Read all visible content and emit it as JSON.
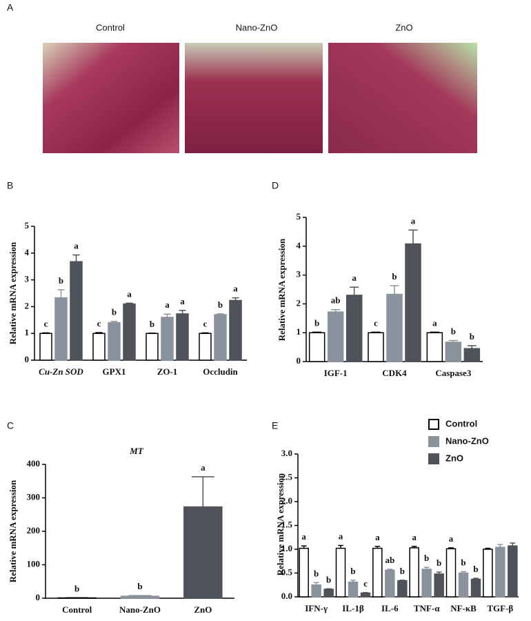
{
  "panel_a": {
    "panel": "A",
    "titles": [
      "Control",
      "Nano-ZnO",
      "ZnO"
    ]
  },
  "chart_data": [
    {
      "type": "bar",
      "panel": "B",
      "y_label": "Relative mRNA expression",
      "categories": [
        "Cu-Zn SOD",
        "GPX1",
        "ZO-1",
        "Occludin"
      ],
      "series": [
        {
          "name": "Control",
          "color": "#ffffff",
          "values": [
            1,
            1,
            1,
            1
          ],
          "errors": [
            0.02,
            0.03,
            0.01,
            0.02
          ],
          "letters": [
            "c",
            "c",
            "b",
            "c"
          ]
        },
        {
          "name": "Nano-ZnO",
          "color": "#8a939d",
          "values": [
            2.33,
            1.4,
            1.6,
            1.7
          ],
          "errors": [
            0.3,
            0.05,
            0.12,
            0.03
          ],
          "letters": [
            "b",
            "b",
            "a",
            "b"
          ]
        },
        {
          "name": "ZnO",
          "color": "#4d5358",
          "values": [
            3.68,
            2.1,
            1.73,
            2.23
          ],
          "errors": [
            0.25,
            0.03,
            0.13,
            0.1
          ],
          "letters": [
            "a",
            "a",
            "a",
            "a"
          ]
        }
      ],
      "ylim": [
        0,
        5
      ],
      "yticks": [
        0,
        1,
        2,
        3,
        4,
        5
      ]
    },
    {
      "type": "bar",
      "panel": "C",
      "title": "MT",
      "y_label": "Relative mRNA expression",
      "categories": [
        "Control",
        "Nano-ZnO",
        "ZnO"
      ],
      "values": [
        1,
        6,
        273
      ],
      "errors": [
        0.5,
        2,
        90
      ],
      "letters": [
        "b",
        "b",
        "a"
      ],
      "colors": [
        "#ffffff",
        "#8a939d",
        "#4d5358"
      ],
      "ylim": [
        0,
        400
      ],
      "yticks": [
        0,
        100,
        200,
        300,
        400
      ]
    },
    {
      "type": "bar",
      "panel": "D",
      "y_label": "Relative mRNA expression",
      "categories": [
        "IGF-1",
        "CDK4",
        "Caspase3"
      ],
      "series": [
        {
          "name": "Control",
          "color": "#ffffff",
          "values": [
            1,
            1,
            1
          ],
          "errors": [
            0.02,
            0.02,
            0.02
          ],
          "letters": [
            "b",
            "c",
            "a"
          ]
        },
        {
          "name": "Nano-ZnO",
          "color": "#8a939d",
          "values": [
            1.72,
            2.33,
            0.67
          ],
          "errors": [
            0.08,
            0.3,
            0.06
          ],
          "letters": [
            "ab",
            "b",
            "b"
          ]
        },
        {
          "name": "ZnO",
          "color": "#4d5358",
          "values": [
            2.3,
            4.08,
            0.45
          ],
          "errors": [
            0.28,
            0.48,
            0.1
          ],
          "letters": [
            "a",
            "a",
            "b"
          ]
        }
      ],
      "ylim": [
        0,
        5
      ],
      "yticks": [
        0,
        1,
        2,
        3,
        4,
        5
      ]
    },
    {
      "type": "bar",
      "panel": "E",
      "y_label": "Relative mRNA expression",
      "legend": true,
      "categories": [
        "IFN-γ",
        "IL-1β",
        "IL-6",
        "TNF-α",
        "NF-κB",
        "TGF-β"
      ],
      "series": [
        {
          "name": "Control",
          "color": "#ffffff",
          "values": [
            1.02,
            1.02,
            1.02,
            1.03,
            1.01,
            1.0
          ],
          "errors": [
            0.05,
            0.06,
            0.04,
            0.03,
            0.02,
            0.02
          ],
          "letters": [
            "a",
            "a",
            "a",
            "a",
            "a",
            null
          ]
        },
        {
          "name": "Nano-ZnO",
          "color": "#8a939d",
          "values": [
            0.25,
            0.31,
            0.56,
            0.58,
            0.5,
            1.04
          ],
          "errors": [
            0.05,
            0.04,
            0.02,
            0.04,
            0.03,
            0.06
          ],
          "letters": [
            "b",
            "b",
            "ab",
            "b",
            "b",
            null
          ]
        },
        {
          "name": "ZnO",
          "color": "#4d5358",
          "values": [
            0.16,
            0.08,
            0.34,
            0.48,
            0.37,
            1.07
          ],
          "errors": [
            0.01,
            0.01,
            0.01,
            0.04,
            0.02,
            0.06
          ],
          "letters": [
            "b",
            "c",
            "b",
            "b",
            "b",
            null
          ]
        }
      ],
      "ylim": [
        0,
        3
      ],
      "yticks": [
        {
          "value": 0,
          "label": "0.0"
        },
        {
          "value": 0.5,
          "label": "0.5"
        },
        {
          "value": 1,
          "label": "1.0"
        },
        {
          "value": 1.5,
          "label": "1.5"
        },
        {
          "value": 2,
          "label": "2.0"
        },
        {
          "value": 2.5,
          "label": "2.5"
        },
        {
          "value": 3,
          "label": "3.0"
        }
      ]
    }
  ]
}
